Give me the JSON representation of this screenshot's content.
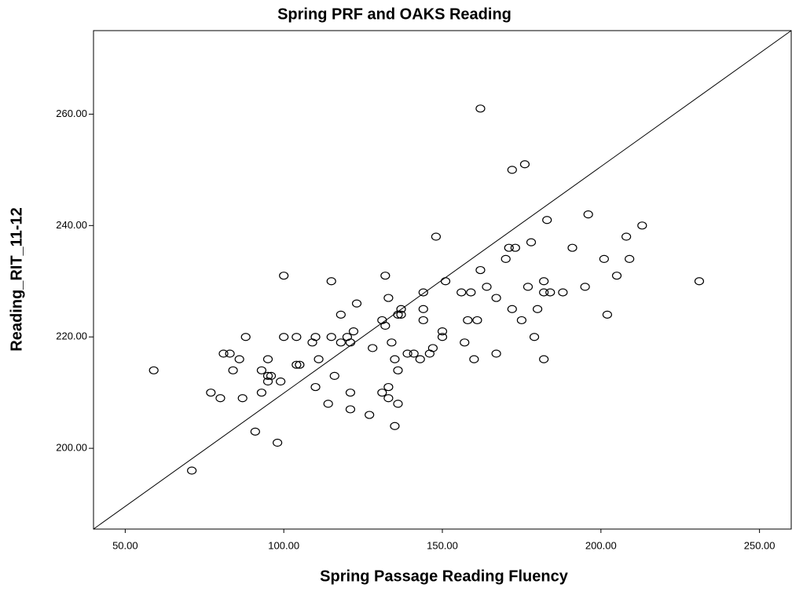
{
  "chart_data": {
    "type": "scatter",
    "title": "Spring PRF and OAKS Reading",
    "x_label": "Spring Passage Reading Fluency",
    "y_label": "Reading_RIT_11-12",
    "xlim": [
      40,
      260
    ],
    "ylim": [
      185.5,
      275
    ],
    "xticks": [
      {
        "value": 50,
        "label": "50.00"
      },
      {
        "value": 100,
        "label": "100.00"
      },
      {
        "value": 150,
        "label": "150.00"
      },
      {
        "value": 200,
        "label": "200.00"
      },
      {
        "value": 250,
        "label": "250.00"
      }
    ],
    "yticks": [
      {
        "value": 200,
        "label": "200.00"
      },
      {
        "value": 220,
        "label": "220.00"
      },
      {
        "value": 240,
        "label": "240.00"
      },
      {
        "value": 260,
        "label": "260.00"
      }
    ],
    "grid": false,
    "color": "#000000",
    "reference_line": {
      "x": [
        40,
        260
      ],
      "y": [
        185.5,
        275
      ]
    },
    "series": [
      {
        "name": null,
        "color": "#000000",
        "x": [
          59,
          71,
          77,
          80,
          81,
          83,
          84,
          86,
          87,
          88,
          91,
          93,
          93,
          95,
          95,
          95,
          96,
          98,
          99,
          100,
          100,
          104,
          104,
          105,
          109,
          110,
          110,
          111,
          114,
          115,
          115,
          116,
          118,
          118,
          120,
          121,
          121,
          121,
          122,
          123,
          127,
          128,
          131,
          131,
          132,
          132,
          133,
          133,
          133,
          134,
          135,
          135,
          136,
          136,
          136,
          137,
          137,
          139,
          141,
          143,
          144,
          144,
          144,
          146,
          147,
          148,
          150,
          150,
          151,
          156,
          157,
          158,
          159,
          160,
          161,
          162,
          162,
          164,
          167,
          167,
          170,
          171,
          172,
          172,
          173,
          175,
          176,
          177,
          178,
          179,
          180,
          182,
          182,
          182,
          183,
          184,
          188,
          191,
          195,
          196,
          201,
          202,
          205,
          208,
          209,
          213,
          231
        ],
        "values": [
          214,
          196,
          210,
          209,
          217,
          217,
          214,
          216,
          209,
          220,
          203,
          214,
          210,
          216,
          213,
          212,
          213,
          201,
          212,
          231,
          220,
          220,
          215,
          215,
          219,
          220,
          211,
          216,
          208,
          230,
          220,
          213,
          219,
          224,
          220,
          219,
          210,
          207,
          221,
          226,
          206,
          218,
          223,
          210,
          222,
          231,
          227,
          211,
          209,
          219,
          216,
          204,
          214,
          208,
          224,
          225,
          224,
          217,
          217,
          216,
          228,
          225,
          223,
          217,
          218,
          238,
          221,
          220,
          230,
          228,
          219,
          223,
          228,
          216,
          223,
          232,
          261,
          229,
          227,
          217,
          234,
          236,
          250,
          225,
          236,
          223,
          251,
          229,
          237,
          220,
          225,
          230,
          228,
          216,
          241,
          228,
          228,
          236,
          229,
          242,
          234,
          224,
          231,
          238,
          234,
          240,
          230
        ]
      }
    ]
  }
}
